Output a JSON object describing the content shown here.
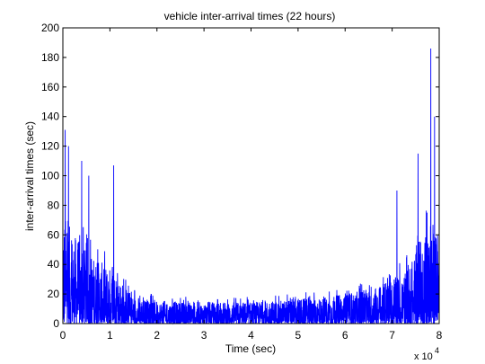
{
  "chart_data": {
    "type": "line",
    "title": "vehicle inter-arrival times (22 hours)",
    "xlabel": "Time (sec)",
    "ylabel": "inter-arrival times (sec)",
    "x_multiplier_label": "x 10",
    "x_multiplier_exponent": "4",
    "xlim": [
      0,
      8
    ],
    "ylim": [
      0,
      200
    ],
    "x_ticks": [
      "0",
      "1",
      "2",
      "3",
      "4",
      "5",
      "6",
      "7",
      "8"
    ],
    "y_ticks": [
      "0",
      "20",
      "40",
      "60",
      "80",
      "100",
      "120",
      "140",
      "160",
      "180",
      "200"
    ],
    "grid": false,
    "line_color": "#0000ff",
    "x_unit_scale": 10000,
    "series": [
      {
        "envelope_x": [
          0,
          0.1,
          0.3,
          0.5,
          0.7,
          0.9,
          1.1,
          1.3,
          1.5,
          2,
          2.5,
          3,
          3.5,
          4,
          4.5,
          5,
          5.5,
          6,
          6.5,
          7,
          7.3,
          7.5,
          7.7,
          7.9,
          8
        ],
        "typical_peak": [
          75,
          65,
          55,
          48,
          42,
          38,
          35,
          25,
          18,
          15,
          14,
          14,
          14,
          14,
          15,
          16,
          17,
          19,
          22,
          28,
          35,
          45,
          60,
          60,
          50
        ],
        "max_spikes": [
          {
            "x": 0.05,
            "y": 131
          },
          {
            "x": 0.12,
            "y": 120
          },
          {
            "x": 0.4,
            "y": 110
          },
          {
            "x": 0.55,
            "y": 100
          },
          {
            "x": 1.08,
            "y": 107
          },
          {
            "x": 7.1,
            "y": 90
          },
          {
            "x": 7.55,
            "y": 115
          },
          {
            "x": 7.82,
            "y": 186
          },
          {
            "x": 7.9,
            "y": 140
          }
        ]
      }
    ]
  }
}
